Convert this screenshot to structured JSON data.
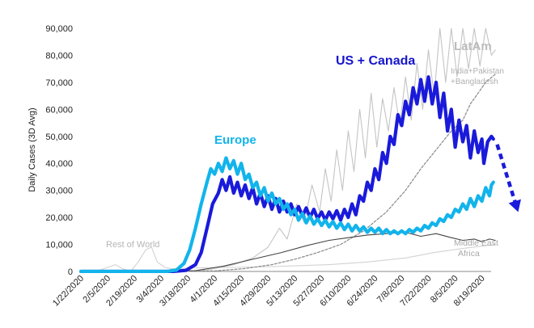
{
  "chart_data": {
    "type": "line",
    "title": "",
    "ylabel": "Daily Cases (3D Avg)",
    "xlabel": "",
    "ylim": [
      0,
      90000
    ],
    "yticks": [
      0,
      10000,
      20000,
      30000,
      40000,
      50000,
      60000,
      70000,
      80000,
      90000
    ],
    "ytick_labels": [
      "0",
      "10,000",
      "20,000",
      "30,000",
      "40,000",
      "50,000",
      "60,000",
      "70,000",
      "80,000",
      "90,000"
    ],
    "x_range": [
      0,
      217
    ],
    "x_ticks": [
      {
        "label": "1/22/2020",
        "day": 0
      },
      {
        "label": "2/5/2020",
        "day": 14
      },
      {
        "label": "2/19/2020",
        "day": 28
      },
      {
        "label": "3/4/2020",
        "day": 42
      },
      {
        "label": "3/18/2020",
        "day": 56
      },
      {
        "label": "4/1/2020",
        "day": 70
      },
      {
        "label": "4/15/2020",
        "day": 84
      },
      {
        "label": "4/29/2020",
        "day": 98
      },
      {
        "label": "5/13/2020",
        "day": 112
      },
      {
        "label": "5/27/2020",
        "day": 126
      },
      {
        "label": "6/10/2020",
        "day": 140
      },
      {
        "label": "6/24/2020",
        "day": 154
      },
      {
        "label": "7/8/2020",
        "day": 168
      },
      {
        "label": "7/22/2020",
        "day": 182
      },
      {
        "label": "8/5/2020",
        "day": 196
      },
      {
        "label": "8/19/2020",
        "day": 210
      }
    ],
    "series": [
      {
        "name": "Rest of World",
        "label": "Rest of World",
        "color": "#d2d2d2",
        "style": "solid-thin",
        "points": [
          [
            0,
            0
          ],
          [
            10,
            500
          ],
          [
            18,
            2500
          ],
          [
            22,
            1000
          ],
          [
            26,
            0
          ],
          [
            30,
            3500
          ],
          [
            34,
            8000
          ],
          [
            37,
            9000
          ],
          [
            40,
            3500
          ],
          [
            44,
            1500
          ],
          [
            48,
            1000
          ],
          [
            55,
            1200
          ],
          [
            65,
            1400
          ],
          [
            80,
            1500
          ],
          [
            100,
            1800
          ],
          [
            130,
            2500
          ],
          [
            150,
            3500
          ],
          [
            170,
            5000
          ],
          [
            185,
            7000
          ],
          [
            200,
            8500
          ],
          [
            217,
            10000
          ]
        ]
      },
      {
        "name": "LatAm",
        "label": "LatAm",
        "color": "#c4c4c4",
        "style": "solid-thin",
        "points": [
          [
            0,
            0
          ],
          [
            55,
            0
          ],
          [
            68,
            800
          ],
          [
            80,
            2500
          ],
          [
            90,
            5000
          ],
          [
            98,
            9000
          ],
          [
            104,
            16000
          ],
          [
            108,
            12000
          ],
          [
            113,
            25000
          ],
          [
            117,
            18000
          ],
          [
            121,
            32000
          ],
          [
            125,
            22000
          ],
          [
            128,
            38000
          ],
          [
            131,
            26000
          ],
          [
            134,
            45000
          ],
          [
            137,
            30000
          ],
          [
            140,
            52000
          ],
          [
            143,
            37000
          ],
          [
            146,
            60000
          ],
          [
            149,
            42000
          ],
          [
            152,
            66000
          ],
          [
            155,
            46000
          ],
          [
            158,
            64000
          ],
          [
            161,
            52000
          ],
          [
            164,
            68000
          ],
          [
            167,
            54000
          ],
          [
            170,
            72000
          ],
          [
            173,
            56000
          ],
          [
            176,
            77000
          ],
          [
            179,
            60000
          ],
          [
            182,
            82000
          ],
          [
            185,
            65000
          ],
          [
            188,
            90000
          ],
          [
            191,
            70000
          ],
          [
            194,
            90000
          ],
          [
            197,
            72000
          ],
          [
            200,
            90000
          ],
          [
            203,
            75000
          ],
          [
            206,
            90000
          ],
          [
            209,
            76000
          ],
          [
            212,
            90000
          ],
          [
            215,
            80000
          ],
          [
            217,
            82000
          ]
        ]
      },
      {
        "name": "India+Pakistan +Bangladesh",
        "label_lines": [
          "India+Pakistan",
          "+Bangladesh"
        ],
        "color": "#888888",
        "style": "dashed",
        "points": [
          [
            0,
            0
          ],
          [
            70,
            200
          ],
          [
            85,
            1000
          ],
          [
            100,
            2500
          ],
          [
            112,
            4500
          ],
          [
            124,
            7000
          ],
          [
            136,
            10000
          ],
          [
            148,
            15000
          ],
          [
            160,
            22000
          ],
          [
            170,
            30000
          ],
          [
            178,
            38000
          ],
          [
            186,
            45000
          ],
          [
            194,
            52000
          ],
          [
            200,
            56000
          ],
          [
            204,
            62000
          ],
          [
            208,
            66000
          ],
          [
            212,
            70000
          ],
          [
            217,
            73000
          ]
        ]
      },
      {
        "name": "Middle East Africa",
        "label_lines": [
          "Middle East",
          "Africa"
        ],
        "color": "#444444",
        "style": "solid-thin",
        "points": [
          [
            0,
            0
          ],
          [
            60,
            300
          ],
          [
            75,
            2000
          ],
          [
            90,
            4500
          ],
          [
            105,
            7000
          ],
          [
            118,
            9500
          ],
          [
            130,
            11500
          ],
          [
            140,
            12500
          ],
          [
            150,
            13500
          ],
          [
            160,
            14000
          ],
          [
            170,
            14500
          ],
          [
            178,
            13000
          ],
          [
            186,
            14000
          ],
          [
            194,
            12500
          ],
          [
            200,
            11500
          ],
          [
            206,
            12000
          ],
          [
            210,
            11000
          ],
          [
            214,
            12000
          ],
          [
            217,
            11500
          ]
        ]
      },
      {
        "name": "US + Canada",
        "label": "US + Canada",
        "color": "#1a1adb",
        "label_color": "#1515cc",
        "style": "solid-thick",
        "points": [
          [
            0,
            0
          ],
          [
            48,
            0
          ],
          [
            55,
            400
          ],
          [
            60,
            2500
          ],
          [
            63,
            7000
          ],
          [
            66,
            16000
          ],
          [
            69,
            25000
          ],
          [
            72,
            29000
          ],
          [
            74,
            34000
          ],
          [
            76,
            30000
          ],
          [
            78,
            35000
          ],
          [
            80,
            29000
          ],
          [
            82,
            33000
          ],
          [
            84,
            28000
          ],
          [
            86,
            32000
          ],
          [
            88,
            27000
          ],
          [
            90,
            31000
          ],
          [
            92,
            25000
          ],
          [
            94,
            29000
          ],
          [
            96,
            24000
          ],
          [
            98,
            28000
          ],
          [
            100,
            23000
          ],
          [
            102,
            27000
          ],
          [
            104,
            22000
          ],
          [
            106,
            26000
          ],
          [
            108,
            22000
          ],
          [
            110,
            25000
          ],
          [
            112,
            21000
          ],
          [
            114,
            24000
          ],
          [
            116,
            20500
          ],
          [
            118,
            23500
          ],
          [
            120,
            20000
          ],
          [
            122,
            23000
          ],
          [
            124,
            19500
          ],
          [
            126,
            22000
          ],
          [
            128,
            19000
          ],
          [
            130,
            22000
          ],
          [
            132,
            19500
          ],
          [
            134,
            22500
          ],
          [
            136,
            19000
          ],
          [
            138,
            23000
          ],
          [
            140,
            20000
          ],
          [
            142,
            25000
          ],
          [
            144,
            21000
          ],
          [
            146,
            28000
          ],
          [
            148,
            26000
          ],
          [
            150,
            33000
          ],
          [
            152,
            30000
          ],
          [
            154,
            38000
          ],
          [
            156,
            34000
          ],
          [
            158,
            44000
          ],
          [
            160,
            40000
          ],
          [
            162,
            50000
          ],
          [
            164,
            47000
          ],
          [
            166,
            58000
          ],
          [
            168,
            54000
          ],
          [
            170,
            63000
          ],
          [
            172,
            58000
          ],
          [
            174,
            68000
          ],
          [
            176,
            62000
          ],
          [
            178,
            71000
          ],
          [
            180,
            63000
          ],
          [
            182,
            72000
          ],
          [
            184,
            62000
          ],
          [
            186,
            70000
          ],
          [
            188,
            57000
          ],
          [
            190,
            66000
          ],
          [
            192,
            52000
          ],
          [
            194,
            60000
          ],
          [
            196,
            46000
          ],
          [
            198,
            56000
          ],
          [
            200,
            48000
          ],
          [
            202,
            54000
          ],
          [
            204,
            42000
          ],
          [
            206,
            52000
          ],
          [
            208,
            44000
          ],
          [
            210,
            49000
          ],
          [
            211,
            40000
          ],
          [
            213,
            48000
          ],
          [
            215,
            50000
          ],
          [
            216,
            49000
          ]
        ]
      },
      {
        "name": "Europe",
        "label": "Europe",
        "color": "#12b4eb",
        "label_color": "#12b4eb",
        "style": "solid-thick",
        "points": [
          [
            0,
            0
          ],
          [
            45,
            0
          ],
          [
            50,
            500
          ],
          [
            54,
            3000
          ],
          [
            57,
            8000
          ],
          [
            60,
            16000
          ],
          [
            63,
            25000
          ],
          [
            66,
            33000
          ],
          [
            68,
            38000
          ],
          [
            70,
            36000
          ],
          [
            72,
            40000
          ],
          [
            74,
            37000
          ],
          [
            76,
            42000
          ],
          [
            78,
            38000
          ],
          [
            80,
            41000
          ],
          [
            82,
            36000
          ],
          [
            84,
            40000
          ],
          [
            86,
            34000
          ],
          [
            88,
            36000
          ],
          [
            90,
            31000
          ],
          [
            92,
            33000
          ],
          [
            94,
            28000
          ],
          [
            96,
            31000
          ],
          [
            98,
            26000
          ],
          [
            100,
            29000
          ],
          [
            102,
            25000
          ],
          [
            104,
            27000
          ],
          [
            106,
            23000
          ],
          [
            108,
            25000
          ],
          [
            110,
            21000
          ],
          [
            112,
            23000
          ],
          [
            114,
            19000
          ],
          [
            116,
            21500
          ],
          [
            118,
            18000
          ],
          [
            120,
            20500
          ],
          [
            122,
            17500
          ],
          [
            124,
            19500
          ],
          [
            126,
            17000
          ],
          [
            128,
            19000
          ],
          [
            130,
            16500
          ],
          [
            132,
            18500
          ],
          [
            134,
            16000
          ],
          [
            136,
            18000
          ],
          [
            138,
            15500
          ],
          [
            140,
            17500
          ],
          [
            142,
            15000
          ],
          [
            144,
            17000
          ],
          [
            146,
            15000
          ],
          [
            148,
            16500
          ],
          [
            150,
            14500
          ],
          [
            152,
            16000
          ],
          [
            154,
            14500
          ],
          [
            156,
            16000
          ],
          [
            158,
            14000
          ],
          [
            160,
            15500
          ],
          [
            162,
            14000
          ],
          [
            164,
            15000
          ],
          [
            166,
            14000
          ],
          [
            168,
            15000
          ],
          [
            170,
            14000
          ],
          [
            172,
            15500
          ],
          [
            174,
            14500
          ],
          [
            176,
            16000
          ],
          [
            178,
            15000
          ],
          [
            180,
            17000
          ],
          [
            182,
            16000
          ],
          [
            184,
            18000
          ],
          [
            186,
            17000
          ],
          [
            188,
            19500
          ],
          [
            190,
            18500
          ],
          [
            192,
            21000
          ],
          [
            194,
            20000
          ],
          [
            196,
            23000
          ],
          [
            198,
            22000
          ],
          [
            200,
            25000
          ],
          [
            202,
            23000
          ],
          [
            204,
            27000
          ],
          [
            206,
            24000
          ],
          [
            208,
            28000
          ],
          [
            210,
            26000
          ],
          [
            212,
            31000
          ],
          [
            214,
            28000
          ],
          [
            215,
            32000
          ],
          [
            216,
            33000
          ]
        ]
      }
    ],
    "trend_arrow": {
      "color": "#1a1adb",
      "style": "dashed",
      "from": [
        218,
        47000
      ],
      "to": [
        229,
        22000
      ]
    }
  }
}
